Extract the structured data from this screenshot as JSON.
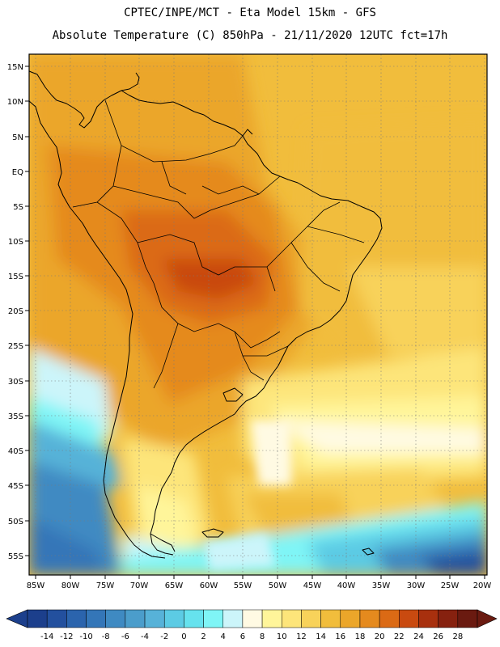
{
  "header": {
    "title_line1": "CPTEC/INPE/MCT -  Eta Model 15km - GFS",
    "title_line2": "Absolute Temperature (C) 850hPa - 21/11/2020 12UTC fct=17h"
  },
  "map": {
    "lat_labels": [
      "15N",
      "10N",
      "5N",
      "EQ",
      "5S",
      "10S",
      "15S",
      "20S",
      "25S",
      "30S",
      "35S",
      "40S",
      "45S",
      "50S",
      "55S"
    ],
    "lon_labels": [
      "85W",
      "80W",
      "75W",
      "70W",
      "65W",
      "60W",
      "55W",
      "50W",
      "45W",
      "40W",
      "35W",
      "30W",
      "25W",
      "20W"
    ],
    "gridlines": "dotted"
  },
  "colorbar": {
    "tick_labels": [
      "-14",
      "-12",
      "-10",
      "-8",
      "-6",
      "-4",
      "-2",
      "0",
      "2",
      "4",
      "6",
      "8",
      "10",
      "12",
      "14",
      "16",
      "18",
      "20",
      "22",
      "24",
      "26",
      "28"
    ],
    "colors": [
      "#1c3f8c",
      "#23509e",
      "#2b64ad",
      "#3476b8",
      "#3f8ac2",
      "#4b9dcb",
      "#57b2d8",
      "#5ccbe4",
      "#66e2ee",
      "#7ff5f6",
      "#ccf5fa",
      "#fffae3",
      "#fff59a",
      "#fde57a",
      "#f8d25a",
      "#f1bd3c",
      "#eba62a",
      "#e58a1e",
      "#db6a15",
      "#c94a10",
      "#a8300e",
      "#86210f",
      "#6a1a10"
    ],
    "under_color": "#1c3f8c",
    "over_color": "#6a1a10"
  }
}
